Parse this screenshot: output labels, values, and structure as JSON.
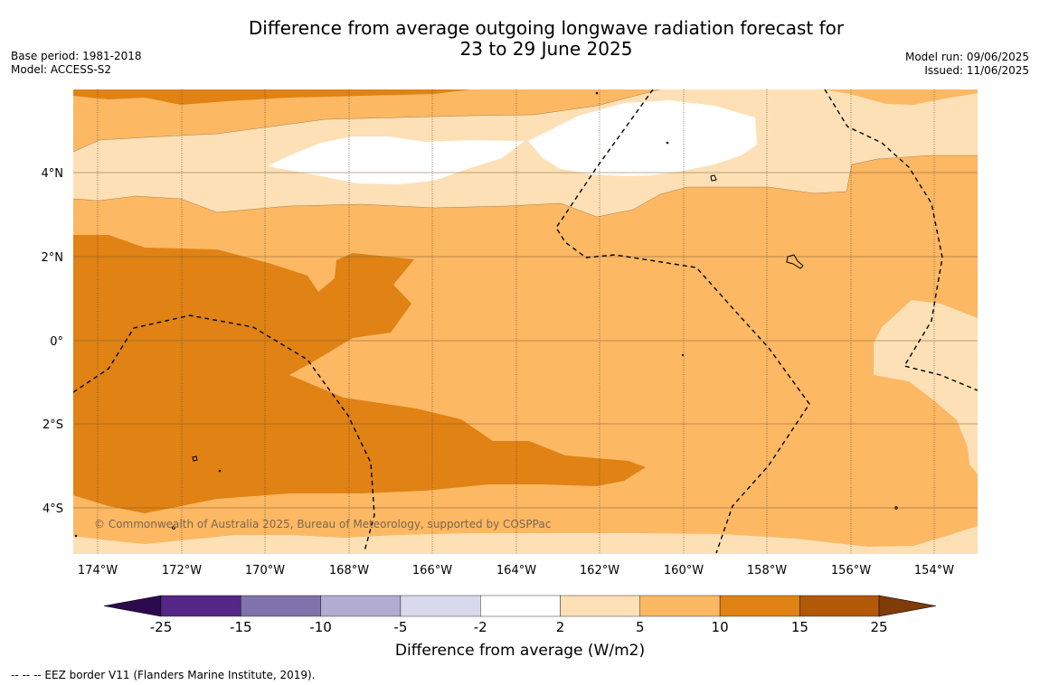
{
  "title_line1": "Difference from average outgoing longwave radiation forecast for",
  "title_line2": "23 to 29 June 2025",
  "base_period": "Base period: 1981-2018",
  "model": "Model: ACCESS-S2",
  "model_run": "Model run: 09/06/2025",
  "issued": "Issued: 11/06/2025",
  "copyright": "© Commonwealth of Australia 2025, Bureau of Meteorology, supported by COSPPac",
  "lat_labels": [
    "4°N",
    "2°N",
    "0°",
    "2°S",
    "4°S"
  ],
  "lon_labels": [
    "174°W",
    "172°W",
    "170°W",
    "168°W",
    "166°W",
    "164°W",
    "162°W",
    "160°W",
    "158°W",
    "156°W",
    "154°W"
  ],
  "colorbar": {
    "label": "Difference from average (W/m2)",
    "ticks": [
      "-25",
      "-15",
      "-10",
      "-5",
      "-2",
      "2",
      "5",
      "10",
      "15",
      "25"
    ],
    "under_color": "#2d0a4e",
    "colors": [
      "#542788",
      "#8073ac",
      "#b2abd2",
      "#d8daeb",
      "#ffffff",
      "#fee0b6",
      "#fdb863",
      "#e08214",
      "#b35806"
    ],
    "over_color": "#7f3b08"
  },
  "footnote": "-- -- -- EEZ border V11 (Flanders Marine Institute, 2019)."
}
